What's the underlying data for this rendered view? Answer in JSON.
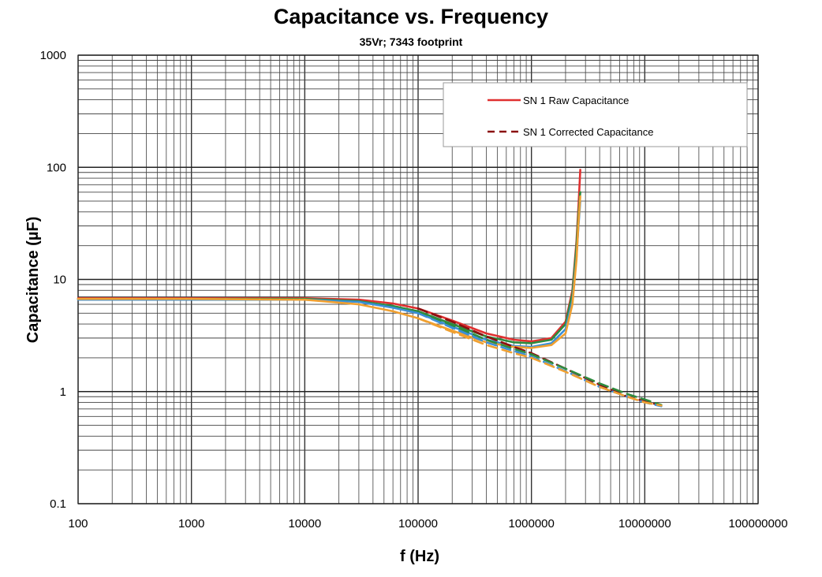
{
  "chart_data": {
    "type": "line",
    "title": "Capacitance vs. Frequency",
    "subtitle": "35Vr; 7343 footprint",
    "xlabel": "f (Hz)",
    "ylabel": "Capacitance (µF)",
    "x_scale": "log",
    "y_scale": "log",
    "xlim": [
      100,
      100000000
    ],
    "ylim": [
      0.1,
      1000
    ],
    "x_ticks": [
      "100",
      "1000",
      "10000",
      "100000",
      "1000000",
      "10000000",
      "100000000"
    ],
    "y_ticks": [
      "0.1",
      "1",
      "10",
      "100",
      "1000"
    ],
    "grid": true,
    "legend_position": "top-right",
    "legend": [
      {
        "label": "SN 1 Raw Capacitance",
        "style": "solid",
        "color": "#e03030"
      },
      {
        "label": "SN 1 Corrected Capacitance",
        "style": "dashed",
        "color": "#8b1010"
      }
    ],
    "series": [
      {
        "name": "SN 1 Raw Capacitance",
        "style": "solid",
        "color": "#e03030",
        "x": [
          100,
          1000,
          10000,
          30000,
          60000,
          100000,
          200000,
          400000,
          700000,
          1000000,
          1500000,
          2000000,
          2300000,
          2500000,
          2600000,
          2700000
        ],
        "y": [
          6.8,
          6.8,
          6.8,
          6.6,
          6.1,
          5.5,
          4.3,
          3.3,
          2.9,
          2.8,
          3.0,
          4.2,
          8.0,
          22,
          45,
          95
        ]
      },
      {
        "style": "solid",
        "color": "#2e8b3e",
        "x": [
          100,
          1000,
          10000,
          30000,
          60000,
          100000,
          200000,
          400000,
          700000,
          1000000,
          1500000,
          2000000,
          2300000,
          2500000,
          2600000,
          2700000
        ],
        "y": [
          6.7,
          6.7,
          6.7,
          6.4,
          5.8,
          5.2,
          4.0,
          3.1,
          2.75,
          2.7,
          2.9,
          4.0,
          7.5,
          20,
          38,
          60
        ]
      },
      {
        "style": "solid",
        "color": "#3a8fd8",
        "x": [
          100,
          1000,
          10000,
          30000,
          60000,
          100000,
          200000,
          400000,
          700000,
          1000000,
          1500000,
          2000000,
          2300000,
          2500000,
          2600000,
          2700000
        ],
        "y": [
          6.6,
          6.6,
          6.6,
          6.3,
          5.6,
          5.0,
          3.8,
          2.9,
          2.55,
          2.5,
          2.7,
          3.6,
          6.5,
          16,
          30,
          50
        ]
      },
      {
        "style": "solid",
        "color": "#f0a030",
        "x": [
          100,
          1000,
          10000,
          30000,
          60000,
          100000,
          200000,
          400000,
          700000,
          1000000,
          1500000,
          2000000,
          2300000,
          2500000,
          2600000,
          2700000
        ],
        "y": [
          6.7,
          6.7,
          6.6,
          6.0,
          5.2,
          4.5,
          3.5,
          2.75,
          2.5,
          2.45,
          2.6,
          3.3,
          6.0,
          15,
          32,
          55
        ]
      },
      {
        "name": "SN 1 Corrected Capacitance",
        "style": "dashed",
        "color": "#8b1010",
        "x": [
          100000,
          200000,
          400000,
          700000,
          1000000,
          2000000,
          4000000,
          7000000,
          10000000,
          14000000
        ],
        "y": [
          5.5,
          4.2,
          3.1,
          2.5,
          2.2,
          1.6,
          1.15,
          0.9,
          0.82,
          0.75
        ]
      },
      {
        "style": "dashed",
        "color": "#2e8b3e",
        "x": [
          100000,
          200000,
          400000,
          700000,
          1000000,
          2000000,
          4000000,
          7000000,
          10000000,
          14000000
        ],
        "y": [
          5.2,
          3.9,
          2.9,
          2.4,
          2.15,
          1.6,
          1.18,
          0.95,
          0.85,
          0.76
        ]
      },
      {
        "style": "dashed",
        "color": "#3a8fd8",
        "x": [
          100000,
          200000,
          400000,
          700000,
          1000000,
          2000000,
          4000000,
          7000000,
          10000000,
          14000000
        ],
        "y": [
          5.0,
          3.7,
          2.75,
          2.3,
          2.05,
          1.52,
          1.1,
          0.9,
          0.8,
          0.74
        ]
      },
      {
        "style": "dashed",
        "color": "#f0a030",
        "x": [
          100000,
          200000,
          400000,
          700000,
          1000000,
          2000000,
          4000000,
          7000000,
          10000000,
          14000000
        ],
        "y": [
          4.5,
          3.4,
          2.6,
          2.2,
          2.0,
          1.5,
          1.1,
          0.9,
          0.8,
          0.75
        ]
      }
    ]
  }
}
